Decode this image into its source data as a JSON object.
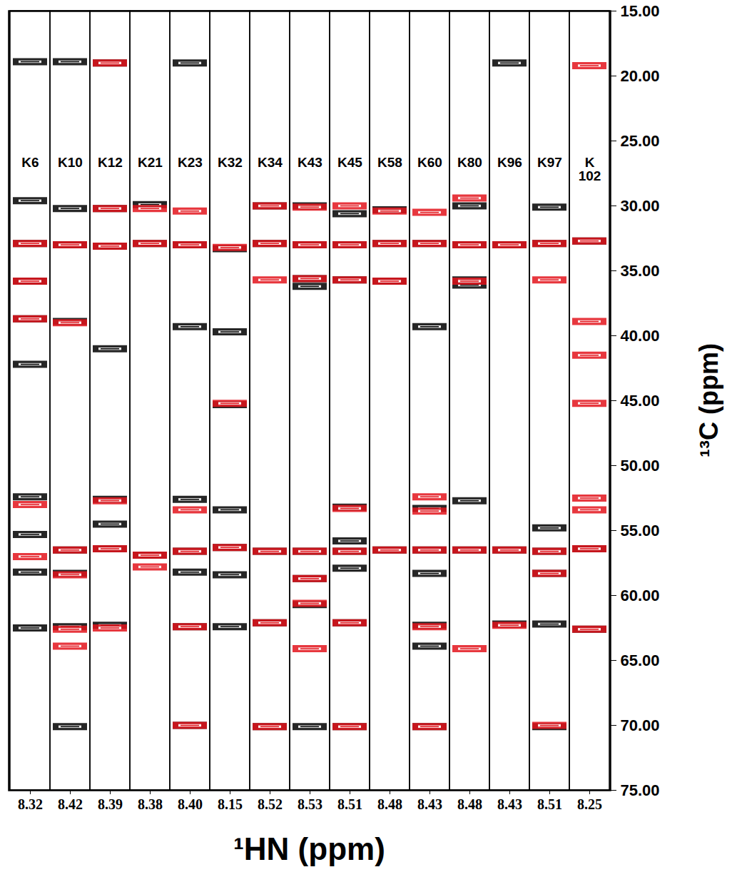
{
  "chart_data": {
    "type": "strip",
    "x_label": "¹HN (ppm)",
    "y_label": "¹³C (ppm)",
    "categories": [
      "K6",
      "K10",
      "K12",
      "K21",
      "K23",
      "K32",
      "K34",
      "K43",
      "K45",
      "K58",
      "K60",
      "K80",
      "K96",
      "K97",
      "K102"
    ],
    "hn_ppm": [
      8.32,
      8.42,
      8.39,
      8.38,
      {
        "value": 8.4,
        "label": "8.40"
      },
      8.15,
      8.52,
      8.53,
      8.51,
      8.48,
      8.43,
      8.48,
      8.43,
      8.51,
      8.25
    ],
    "ylim": [
      15,
      75
    ],
    "yticks": [
      {
        "value": 15,
        "label": "15.00"
      },
      {
        "value": 20,
        "label": "20.00"
      },
      {
        "value": 25,
        "label": "25.00"
      },
      {
        "value": 30,
        "label": "30.00"
      },
      {
        "value": 35,
        "label": "35.00"
      },
      {
        "value": 40,
        "label": "40.00"
      },
      {
        "value": 45,
        "label": "45.00"
      },
      {
        "value": 50,
        "label": "50.00"
      },
      {
        "value": 55,
        "label": "55.00"
      },
      {
        "value": 60,
        "label": "60.00"
      },
      {
        "value": 65,
        "label": "65.00"
      },
      {
        "value": 70,
        "label": "70.00"
      },
      {
        "value": 75,
        "label": "75.00"
      }
    ],
    "series": [
      {
        "color": "#000000",
        "values": [
          [
            18.9,
            29.6,
            32.9,
            35.8,
            38.7,
            42.2,
            52.4,
            55.3,
            58.2,
            62.5
          ],
          [
            18.9,
            30.2,
            33.0,
            38.9,
            56.5,
            58.3,
            62.4,
            70.1
          ],
          [
            19.0,
            30.2,
            33.1,
            41.0,
            52.6,
            54.5,
            56.4,
            62.3
          ],
          [
            29.9,
            32.9,
            56.9
          ],
          [
            19.0,
            33.0,
            39.3,
            52.6,
            56.6,
            58.2,
            62.4,
            70.0
          ],
          [
            33.3,
            39.7,
            45.3,
            53.4,
            56.3,
            58.4,
            62.4
          ],
          [
            30.0,
            32.9,
            56.6,
            62.1,
            70.1
          ],
          [
            30.0,
            33.0,
            35.6,
            36.2,
            56.6,
            58.7,
            60.7,
            70.1
          ],
          [
            30.6,
            33.0,
            35.7,
            53.2,
            55.8,
            56.6,
            57.9,
            62.1,
            70.1
          ],
          [
            30.3,
            32.9,
            35.8,
            56.5
          ],
          [
            32.9,
            39.3,
            53.3,
            56.5,
            58.3,
            62.3,
            63.9,
            70.1
          ],
          [
            30.0,
            33.0,
            35.7,
            36.1,
            52.7,
            56.5
          ],
          [
            19.0,
            33.0,
            56.5,
            62.2
          ],
          [
            30.1,
            32.9,
            54.8,
            56.6,
            58.3,
            62.2,
            70.1
          ],
          [
            32.7,
            56.4,
            62.6
          ]
        ]
      },
      {
        "color": "#e3141c",
        "values": [
          [
            32.9,
            35.8,
            38.7,
            53.0,
            57.0
          ],
          [
            33.0,
            39.0,
            56.5,
            58.4,
            62.6,
            63.9
          ],
          [
            19.0,
            30.2,
            33.1,
            52.7,
            56.4,
            62.5
          ],
          [
            30.2,
            32.9,
            56.9,
            57.8
          ],
          [
            30.4,
            33.0,
            53.4,
            56.6,
            62.4,
            70.0
          ],
          [
            33.2,
            45.2,
            56.3
          ],
          [
            30.0,
            32.9,
            35.7,
            56.6,
            62.1,
            70.1
          ],
          [
            30.1,
            33.0,
            35.6,
            56.6,
            58.7,
            60.6,
            64.1
          ],
          [
            30.0,
            33.0,
            35.7,
            53.3,
            56.6,
            62.1,
            70.1
          ],
          [
            30.4,
            32.9,
            35.8,
            56.5
          ],
          [
            30.5,
            32.9,
            52.4,
            53.5,
            56.5,
            62.4,
            70.1
          ],
          [
            29.4,
            33.0,
            35.8,
            56.5,
            64.1
          ],
          [
            33.0,
            56.5,
            62.3
          ],
          [
            32.9,
            35.7,
            56.6,
            58.3,
            70.0
          ],
          [
            19.2,
            32.7,
            38.9,
            41.5,
            45.2,
            52.5,
            53.4,
            56.4,
            62.6
          ]
        ]
      }
    ]
  }
}
